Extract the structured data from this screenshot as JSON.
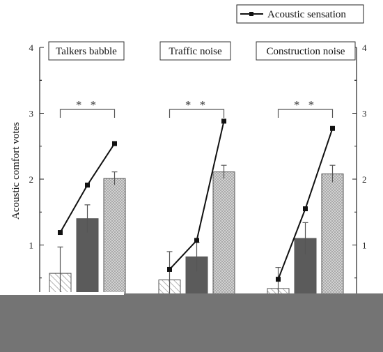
{
  "chart_data": {
    "type": "bar",
    "ylabel": "Acoustic comfort votes",
    "ylim": [
      0,
      4
    ],
    "yticks": [
      "1",
      "2",
      "3",
      "4"
    ],
    "legend": {
      "label": "Acoustic sensation",
      "placement": "top-right"
    },
    "significance_label": "* *",
    "groups": [
      {
        "name": "Talkers babble",
        "bars": [
          {
            "value": 0.57,
            "error": 0.4,
            "pattern": "hatched"
          },
          {
            "value": 1.4,
            "error": 0.21,
            "pattern": "dark"
          },
          {
            "value": 2.01,
            "error": 0.1,
            "pattern": "dotted"
          }
        ],
        "acoustic_sensation": [
          1.19,
          1.91,
          2.54
        ]
      },
      {
        "name": "Traffic noise",
        "bars": [
          {
            "value": 0.47,
            "error": 0.43,
            "pattern": "hatched"
          },
          {
            "value": 0.82,
            "error": 0.22,
            "pattern": "dark"
          },
          {
            "value": 2.11,
            "error": 0.1,
            "pattern": "dotted"
          }
        ],
        "acoustic_sensation": [
          0.63,
          1.07,
          2.88
        ]
      },
      {
        "name": "Construction noise",
        "bars": [
          {
            "value": 0.34,
            "error": 0.32,
            "pattern": "hatched"
          },
          {
            "value": 1.1,
            "error": 0.24,
            "pattern": "dark"
          },
          {
            "value": 2.08,
            "error": 0.13,
            "pattern": "dotted"
          }
        ],
        "acoustic_sensation": [
          0.48,
          1.55,
          2.77
        ]
      }
    ],
    "colors": {
      "dark_bar": "#5b5b5b",
      "dotted_bar": "#c8c8c8",
      "hatched_bar": "#ffffff",
      "line": "#111111",
      "occlusion": "#747474"
    }
  }
}
